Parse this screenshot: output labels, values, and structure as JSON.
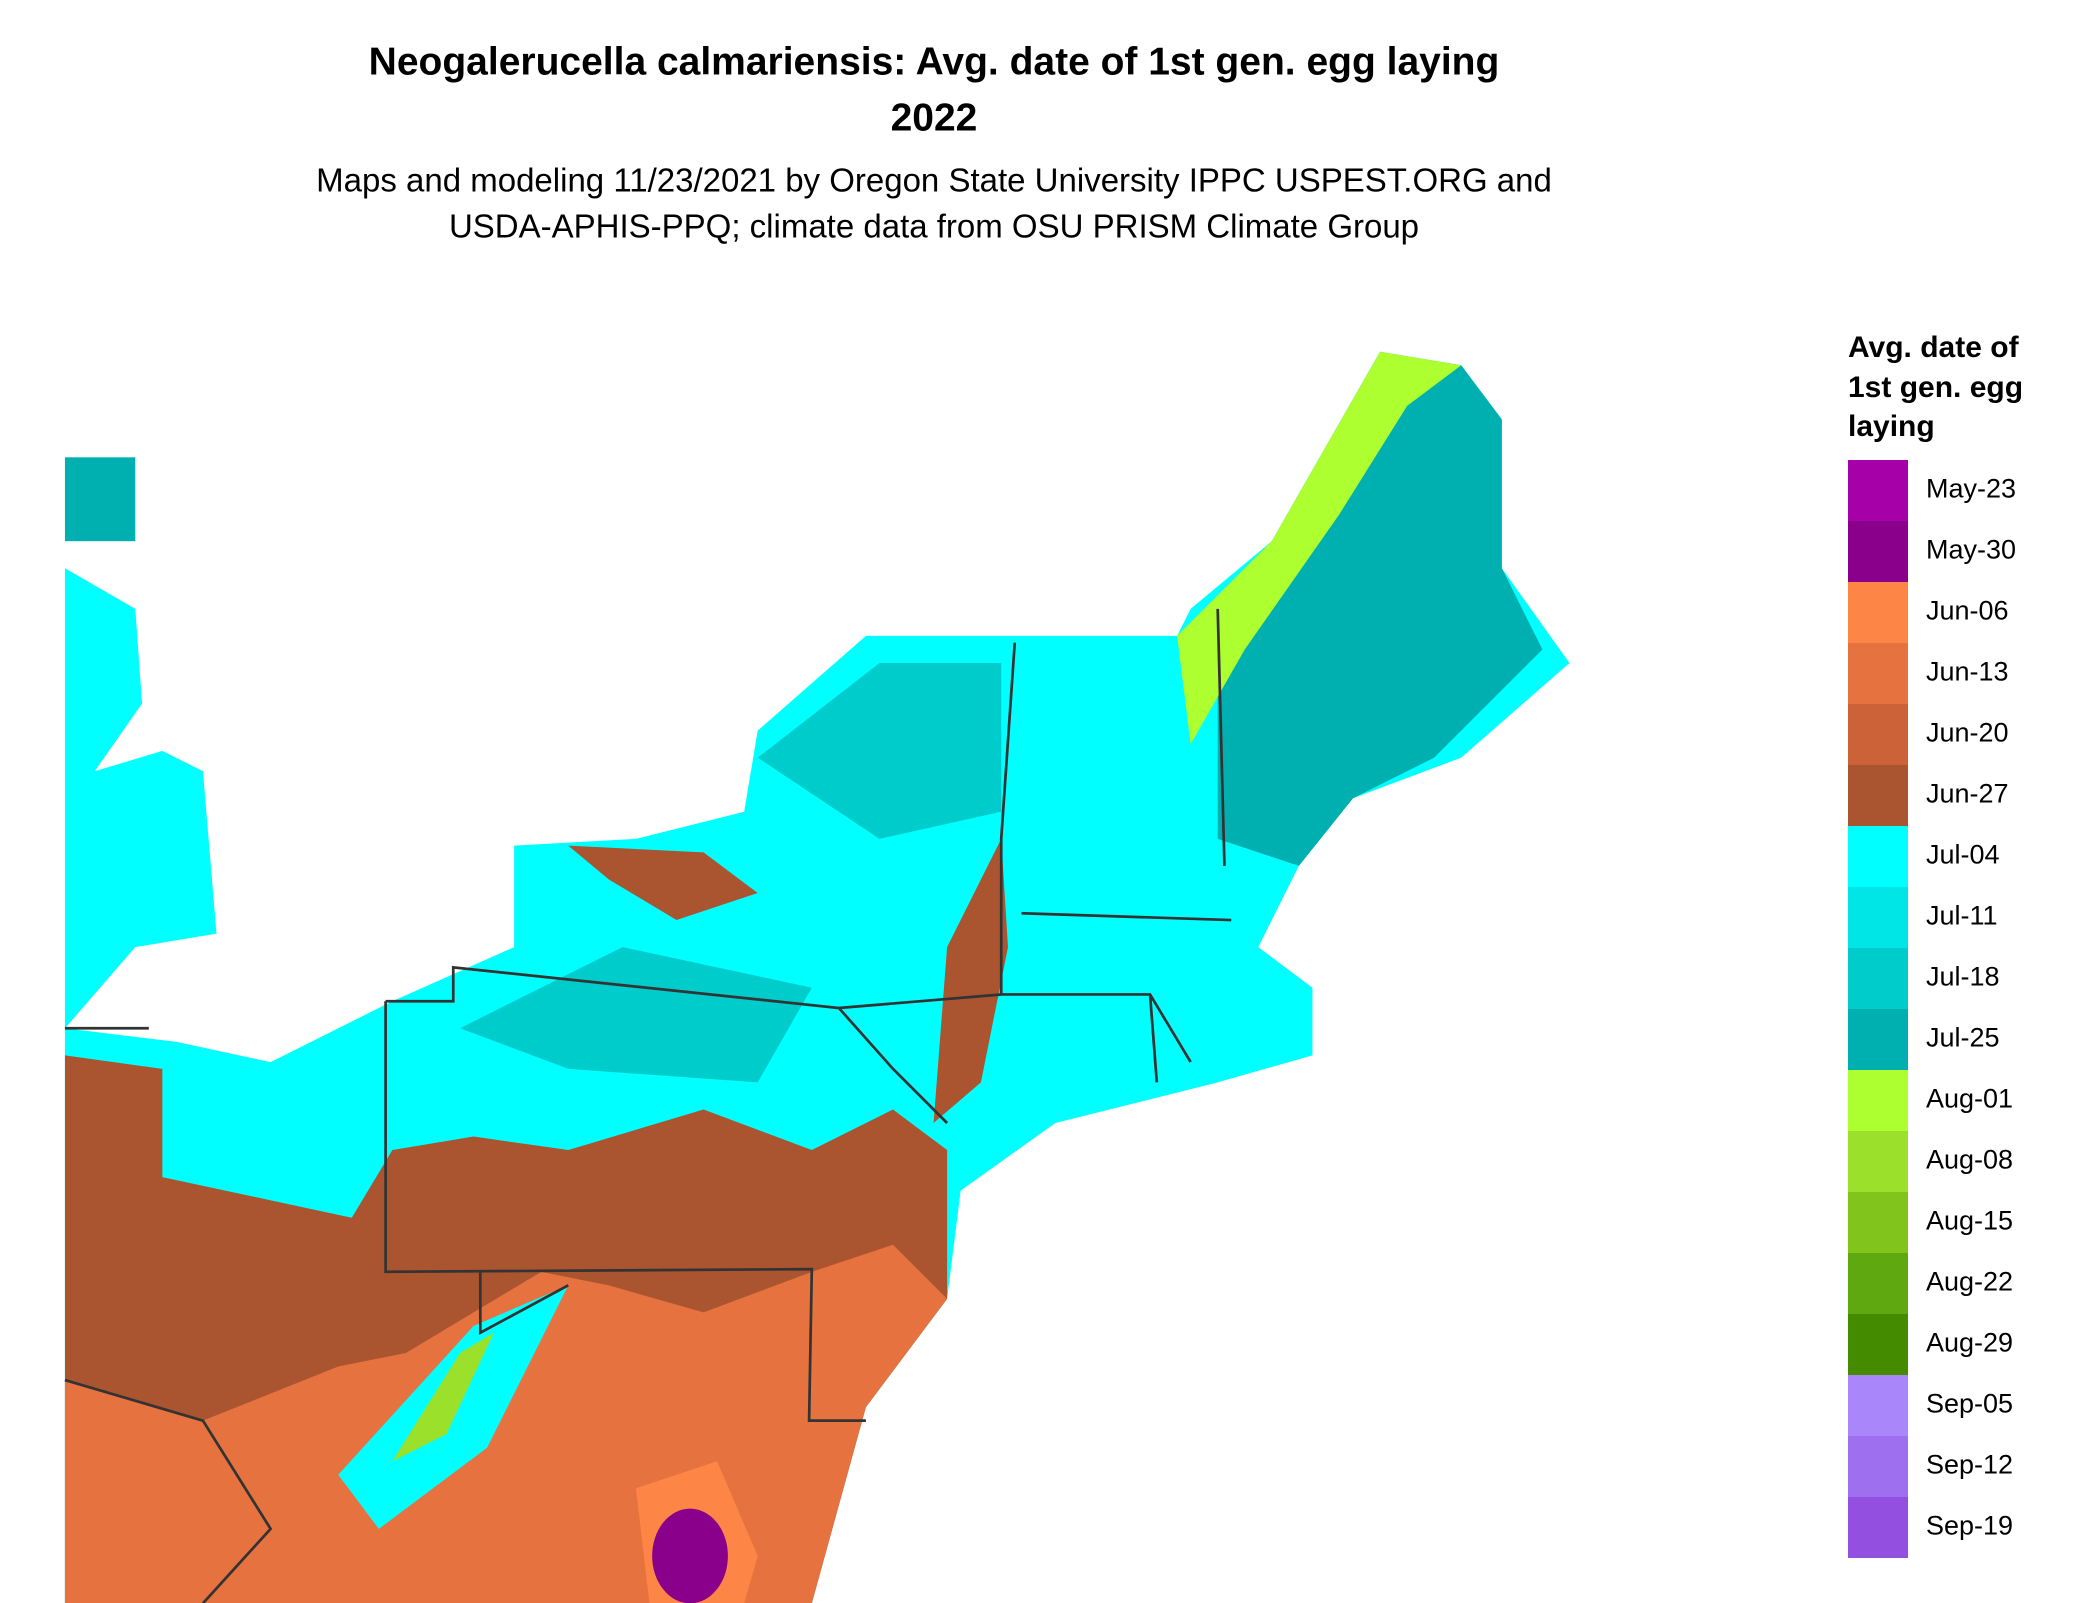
{
  "header": {
    "title": [
      "Neogalerucella calmariensis: Avg. date of 1st gen. egg laying",
      "2022"
    ],
    "subtitle": [
      "Maps and modeling 11/23/2021 by Oregon State University IPPC USPEST.ORG and",
      "USDA-APHIS-PPQ; climate data from OSU PRISM Climate Group"
    ]
  },
  "legend": {
    "title": [
      "Avg. date of",
      "1st gen. egg",
      "laying"
    ],
    "items": [
      {
        "label": "May-23",
        "color": "#a600a8"
      },
      {
        "label": "May-30",
        "color": "#8b008b"
      },
      {
        "label": "Jun-06",
        "color": "#fd8545"
      },
      {
        "label": "Jun-13",
        "color": "#e6733f"
      },
      {
        "label": "Jun-20",
        "color": "#cc6238"
      },
      {
        "label": "Jun-27",
        "color": "#aa5530"
      },
      {
        "label": "Jul-04",
        "color": "#00ffff"
      },
      {
        "label": "Jul-11",
        "color": "#00e5e5"
      },
      {
        "label": "Jul-18",
        "color": "#00cccc"
      },
      {
        "label": "Jul-25",
        "color": "#00b0b0"
      },
      {
        "label": "Aug-01",
        "color": "#adff2f"
      },
      {
        "label": "Aug-08",
        "color": "#9be02a"
      },
      {
        "label": "Aug-15",
        "color": "#80c41c"
      },
      {
        "label": "Aug-22",
        "color": "#60a810"
      },
      {
        "label": "Aug-29",
        "color": "#458b00"
      },
      {
        "label": "Sep-05",
        "color": "#a987fb"
      },
      {
        "label": "Sep-12",
        "color": "#9e70f0"
      },
      {
        "label": "Sep-19",
        "color": "#9350e0"
      }
    ]
  }
}
